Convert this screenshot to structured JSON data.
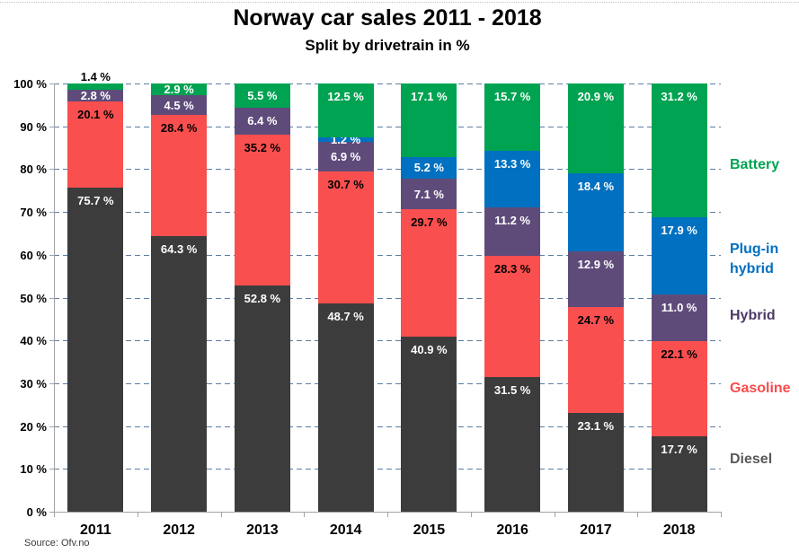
{
  "title": "Norway car sales 2011 - 2018",
  "subtitle": "Split by drivetrain in %",
  "source": "Source: Ofv.no",
  "chart_data": {
    "type": "bar",
    "stacked": true,
    "title": "Norway car sales 2011 - 2018",
    "subtitle": "Split by drivetrain in %",
    "categories": [
      "2011",
      "2012",
      "2013",
      "2014",
      "2015",
      "2016",
      "2017",
      "2018"
    ],
    "series": [
      {
        "name": "Diesel",
        "color": "#3c3c3c",
        "label_color": "#ffffff",
        "legend_color": "#595959",
        "values": [
          75.7,
          64.3,
          52.8,
          48.7,
          40.9,
          31.5,
          23.1,
          17.7
        ]
      },
      {
        "name": "Gasoline",
        "color": "#fa4f4f",
        "label_color": "#000000",
        "legend_color": "#fa4b4b",
        "values": [
          20.1,
          28.4,
          35.2,
          30.7,
          29.7,
          28.3,
          24.7,
          22.1
        ]
      },
      {
        "name": "Hybrid",
        "color": "#5e4b7a",
        "label_color": "#ffffff",
        "legend_color": "#4b3a66",
        "values": [
          2.8,
          4.5,
          6.4,
          6.9,
          7.1,
          11.2,
          12.9,
          11.0
        ]
      },
      {
        "name": "Plug-in hybrid",
        "color": "#0070c0",
        "label_color": "#ffffff",
        "legend_color": "#0070c0",
        "values": [
          null,
          null,
          null,
          1.2,
          5.2,
          13.3,
          18.4,
          17.9
        ]
      },
      {
        "name": "Battery",
        "color": "#00a351",
        "label_color": "#ffffff",
        "legend_color": "#00a351",
        "values": [
          1.4,
          2.9,
          5.5,
          12.5,
          17.1,
          15.7,
          20.9,
          31.2
        ]
      }
    ],
    "value_suffix": " %",
    "ylim": [
      0,
      100
    ],
    "yticks": [
      "0 %",
      "10 %",
      "20 %",
      "30 %",
      "40 %",
      "50 %",
      "60 %",
      "70 %",
      "80 %",
      "90 %",
      "100 %"
    ],
    "grid": "horizontal-dashed",
    "legend_position": "right",
    "legend_order": [
      "Battery",
      "Plug-in hybrid",
      "Hybrid",
      "Gasoline",
      "Diesel"
    ]
  }
}
